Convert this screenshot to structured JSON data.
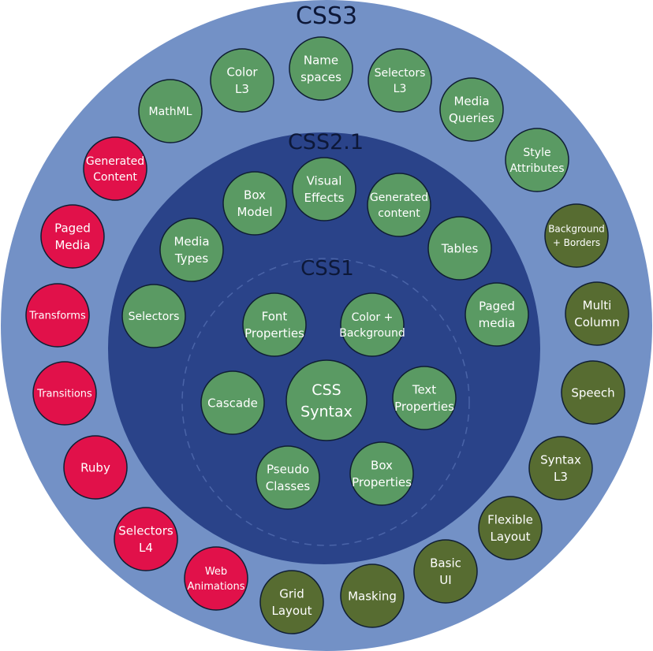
{
  "rings": {
    "css3": {
      "label": "CSS3"
    },
    "css21": {
      "label": "CSS2.1"
    },
    "css1": {
      "label": "CSS1"
    }
  },
  "colors": {
    "outer_ring": "#7391c6",
    "middle_ring": "#2a4389",
    "inner_dash": "#4a64a8",
    "green_module": "#5a9a63",
    "red_module": "#e1114a",
    "olive_module": "#576c31",
    "node_stroke": "#0f1e33"
  },
  "modules": {
    "css1": [
      {
        "name": "css-syntax",
        "lines": [
          "CSS",
          "Syntax"
        ],
        "style": "green",
        "big": true
      },
      {
        "name": "font-properties",
        "lines": [
          "Font",
          "Properties"
        ],
        "style": "green"
      },
      {
        "name": "color-background",
        "lines": [
          "Color +",
          "Background"
        ],
        "style": "green"
      },
      {
        "name": "text-properties",
        "lines": [
          "Text",
          "Properties"
        ],
        "style": "green"
      },
      {
        "name": "box-properties",
        "lines": [
          "Box",
          "Properties"
        ],
        "style": "green"
      },
      {
        "name": "pseudo-classes",
        "lines": [
          "Pseudo",
          "Classes"
        ],
        "style": "green"
      },
      {
        "name": "cascade",
        "lines": [
          "Cascade"
        ],
        "style": "green"
      }
    ],
    "css21": [
      {
        "name": "box-model",
        "lines": [
          "Box",
          "Model"
        ],
        "style": "green"
      },
      {
        "name": "visual-effects",
        "lines": [
          "Visual",
          "Effects"
        ],
        "style": "green"
      },
      {
        "name": "generated-content-21",
        "lines": [
          "Generated",
          "content"
        ],
        "style": "green"
      },
      {
        "name": "tables",
        "lines": [
          "Tables"
        ],
        "style": "green"
      },
      {
        "name": "paged-media-21",
        "lines": [
          "Paged",
          "media"
        ],
        "style": "green"
      },
      {
        "name": "media-types",
        "lines": [
          "Media",
          "Types"
        ],
        "style": "green"
      },
      {
        "name": "selectors-21",
        "lines": [
          "Selectors"
        ],
        "style": "green"
      }
    ],
    "css3": [
      {
        "name": "namespaces",
        "lines": [
          "Name",
          "spaces"
        ],
        "style": "green"
      },
      {
        "name": "color-l3",
        "lines": [
          "Color",
          "L3"
        ],
        "style": "green"
      },
      {
        "name": "selectors-l3",
        "lines": [
          "Selectors",
          "L3"
        ],
        "style": "green"
      },
      {
        "name": "mathml",
        "lines": [
          "MathML"
        ],
        "style": "green"
      },
      {
        "name": "media-queries",
        "lines": [
          "Media",
          "Queries"
        ],
        "style": "green"
      },
      {
        "name": "style-attributes",
        "lines": [
          "Style",
          "Attributes"
        ],
        "style": "green"
      },
      {
        "name": "background-borders",
        "lines": [
          "Background",
          "+ Borders"
        ],
        "style": "olive"
      },
      {
        "name": "multi-column",
        "lines": [
          "Multi",
          "Column"
        ],
        "style": "olive"
      },
      {
        "name": "speech",
        "lines": [
          "Speech"
        ],
        "style": "olive"
      },
      {
        "name": "syntax-l3",
        "lines": [
          "Syntax",
          "L3"
        ],
        "style": "olive"
      },
      {
        "name": "flexible-layout",
        "lines": [
          "Flexible",
          "Layout"
        ],
        "style": "olive"
      },
      {
        "name": "basic-ui",
        "lines": [
          "Basic",
          "UI"
        ],
        "style": "olive"
      },
      {
        "name": "masking",
        "lines": [
          "Masking"
        ],
        "style": "olive"
      },
      {
        "name": "grid-layout",
        "lines": [
          "Grid",
          "Layout"
        ],
        "style": "olive"
      },
      {
        "name": "web-animations",
        "lines": [
          "Web",
          "Animations"
        ],
        "style": "red"
      },
      {
        "name": "selectors-l4",
        "lines": [
          "Selectors",
          "L4"
        ],
        "style": "red"
      },
      {
        "name": "ruby",
        "lines": [
          "Ruby"
        ],
        "style": "red"
      },
      {
        "name": "transitions",
        "lines": [
          "Transitions"
        ],
        "style": "red"
      },
      {
        "name": "transforms",
        "lines": [
          "Transforms"
        ],
        "style": "red"
      },
      {
        "name": "paged-media-css3",
        "lines": [
          "Paged",
          "Media"
        ],
        "style": "red"
      },
      {
        "name": "generated-content-css3",
        "lines": [
          "Generated",
          "Content"
        ],
        "style": "red"
      }
    ]
  }
}
